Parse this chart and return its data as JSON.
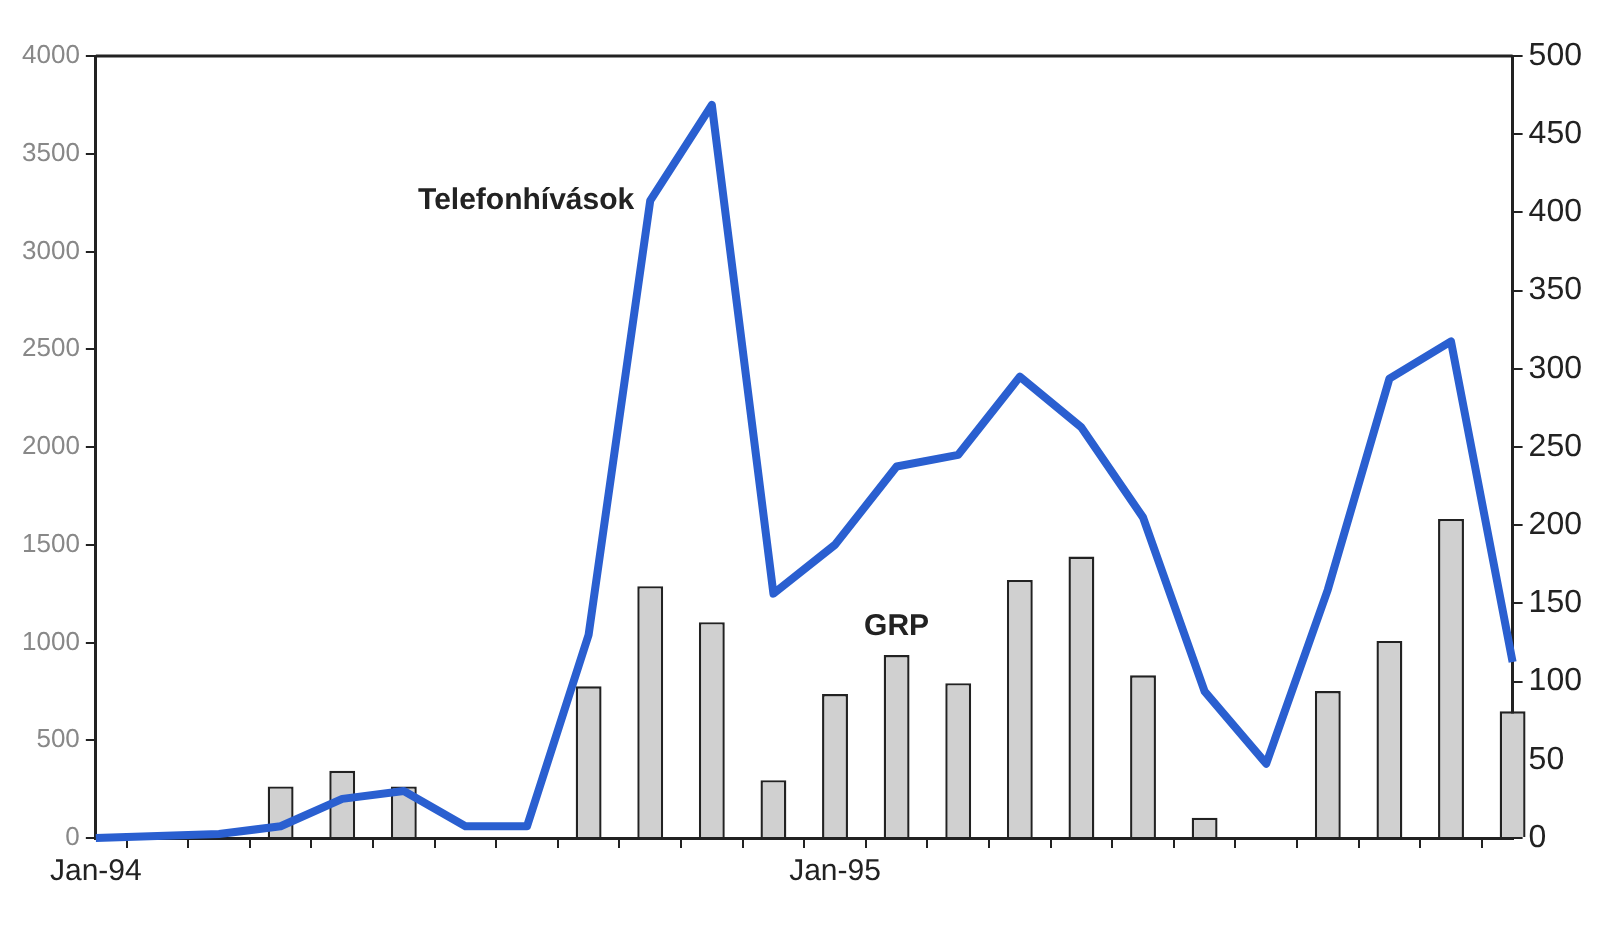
{
  "chart_data": {
    "type": "bar",
    "categories": [
      "Jan-94",
      null,
      null,
      null,
      null,
      null,
      null,
      null,
      null,
      null,
      null,
      null,
      "Jan-95",
      null,
      null,
      null,
      null,
      null,
      null,
      null,
      null,
      null,
      null,
      null
    ],
    "series": [
      {
        "name": "Telefonhívások",
        "type": "line",
        "color": "#2a5fd0",
        "values": [
          0,
          10,
          20,
          60,
          200,
          240,
          60,
          60,
          1040,
          3260,
          3750,
          1250,
          1500,
          1900,
          1960,
          2360,
          2100,
          1640,
          750,
          380,
          1270,
          2350,
          2540,
          900
        ]
      },
      {
        "name": "GRP",
        "axis": "y2",
        "color": "#d0d0d0",
        "values": [
          0,
          0,
          0,
          33,
          43,
          33,
          0,
          0,
          97,
          161,
          138,
          37,
          92,
          117,
          99,
          165,
          180,
          104,
          13,
          0,
          94,
          126,
          204,
          81
        ]
      }
    ],
    "ylim": [
      0,
      4000
    ],
    "yticks": [
      0,
      500,
      1000,
      1500,
      2000,
      2500,
      3000,
      3500,
      4000
    ],
    "y2lim": [
      0,
      500
    ],
    "y2ticks": [
      0,
      50,
      100,
      150,
      200,
      250,
      300,
      350,
      400,
      450,
      500
    ],
    "grid": false,
    "legend": false
  }
}
